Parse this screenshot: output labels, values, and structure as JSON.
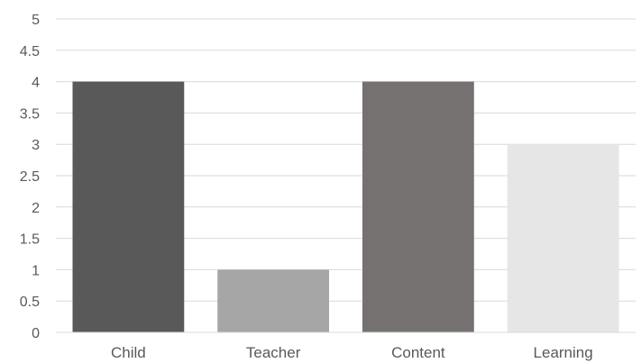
{
  "chart_data": {
    "type": "bar",
    "categories": [
      "Child",
      "Teacher",
      "Content",
      "Learning"
    ],
    "values": [
      4,
      1,
      4,
      3
    ],
    "bar_colors": [
      "#595959",
      "#a6a6a6",
      "#767171",
      "#e7e6e6"
    ],
    "title": "",
    "xlabel": "",
    "ylabel": "",
    "ylim": [
      0,
      5
    ],
    "yticks": [
      "0",
      "0.5",
      "1",
      "1.5",
      "2",
      "2.5",
      "3",
      "3.5",
      "4",
      "4.5",
      "5"
    ],
    "grid": true,
    "grid_color": "#d9d9d9",
    "legend": "none"
  }
}
